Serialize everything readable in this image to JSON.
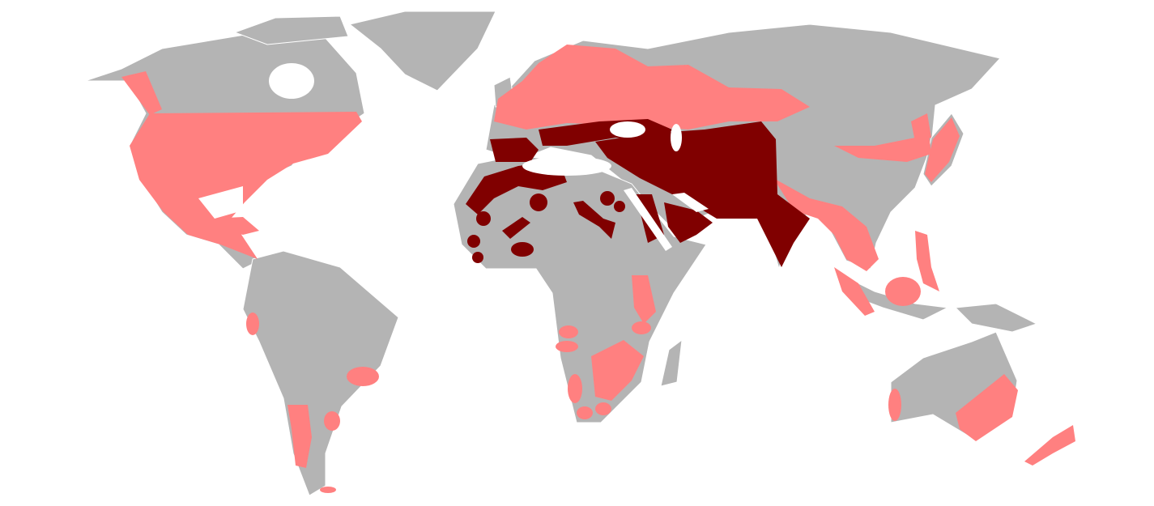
{
  "map": {
    "type": "world distribution map",
    "colors": {
      "water": "#ffffff",
      "land": "#b4b4b4",
      "introduced_range": "#ff8080",
      "native_range": "#800000",
      "borders": "#ffffff"
    }
  }
}
